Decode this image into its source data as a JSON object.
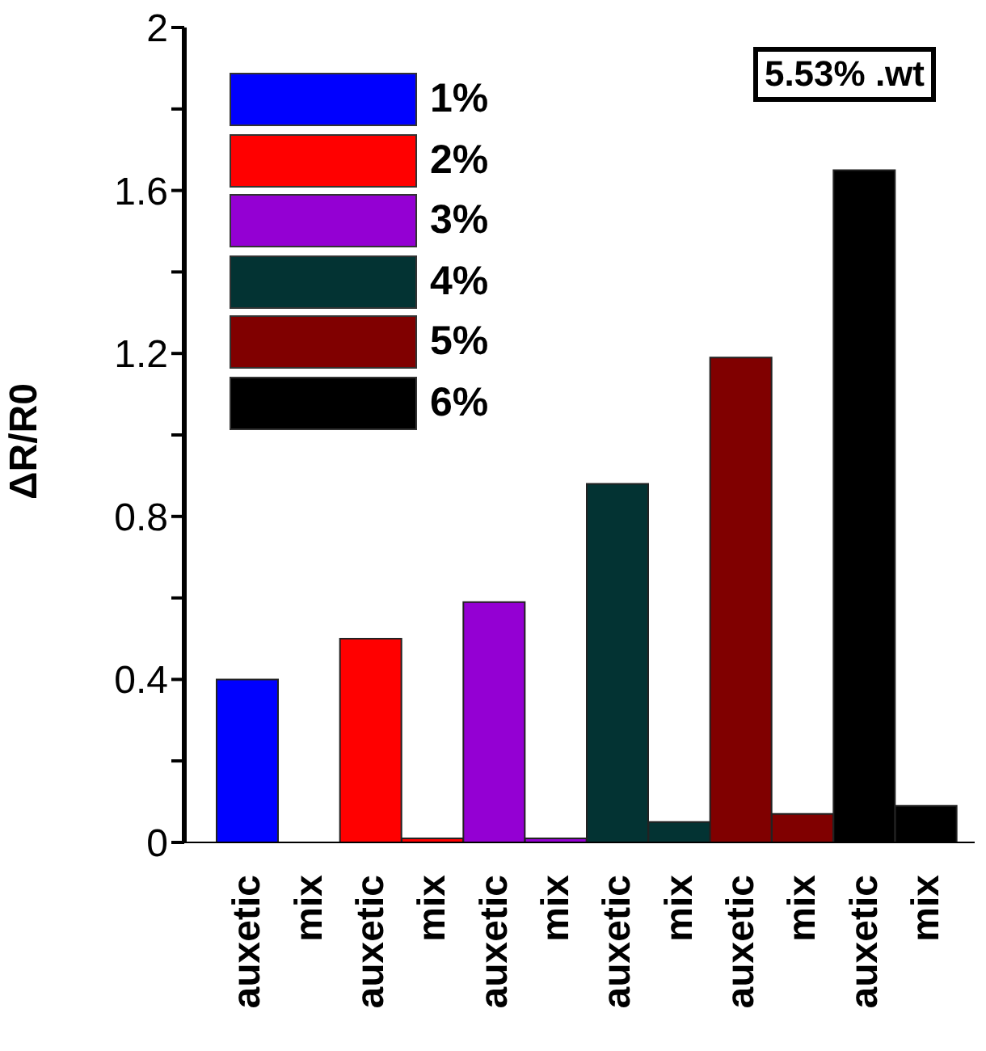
{
  "chart_data": {
    "type": "bar",
    "stacked": true,
    "ylabel": "ΔR/R0",
    "categories": [
      "auxetic",
      "mix",
      "auxetic",
      "mix",
      "auxetic",
      "mix",
      "auxetic",
      "mix",
      "auxetic",
      "mix",
      "auxetic",
      "mix"
    ],
    "series": [
      {
        "name": "1%",
        "color": "#0000ff",
        "values": [
          0.4,
          0,
          null,
          null,
          null,
          null,
          null,
          null,
          null,
          null,
          null,
          null
        ]
      },
      {
        "name": "2%",
        "color": "#ff0000",
        "values": [
          null,
          null,
          0.5,
          0.01,
          null,
          null,
          null,
          null,
          null,
          null,
          null,
          null
        ]
      },
      {
        "name": "3%",
        "color": "#9400d3",
        "values": [
          null,
          null,
          null,
          null,
          0.59,
          0.01,
          null,
          null,
          null,
          null,
          null,
          null
        ]
      },
      {
        "name": "4%",
        "color": "#033333",
        "values": [
          null,
          null,
          null,
          null,
          null,
          null,
          0.88,
          0.05,
          null,
          null,
          null,
          null
        ]
      },
      {
        "name": "5%",
        "color": "#800000",
        "values": [
          null,
          null,
          null,
          null,
          null,
          null,
          null,
          null,
          1.19,
          0.07,
          null,
          null
        ]
      },
      {
        "name": "6%",
        "color": "#000000",
        "values": [
          null,
          null,
          null,
          null,
          null,
          null,
          null,
          null,
          null,
          null,
          1.65,
          0.09
        ]
      }
    ],
    "ylim": [
      0,
      2
    ],
    "yticks": [
      0,
      {
        "value": 0.2,
        "label": null
      },
      0.4,
      {
        "value": 0.6,
        "label": null
      },
      0.8,
      {
        "value": 1,
        "label": null
      },
      1.2,
      {
        "value": 1.4,
        "label": null
      },
      1.6,
      {
        "value": 1.8,
        "label": null
      },
      2
    ],
    "legend": "top left",
    "annotations": [
      "5.53% .wt"
    ]
  }
}
